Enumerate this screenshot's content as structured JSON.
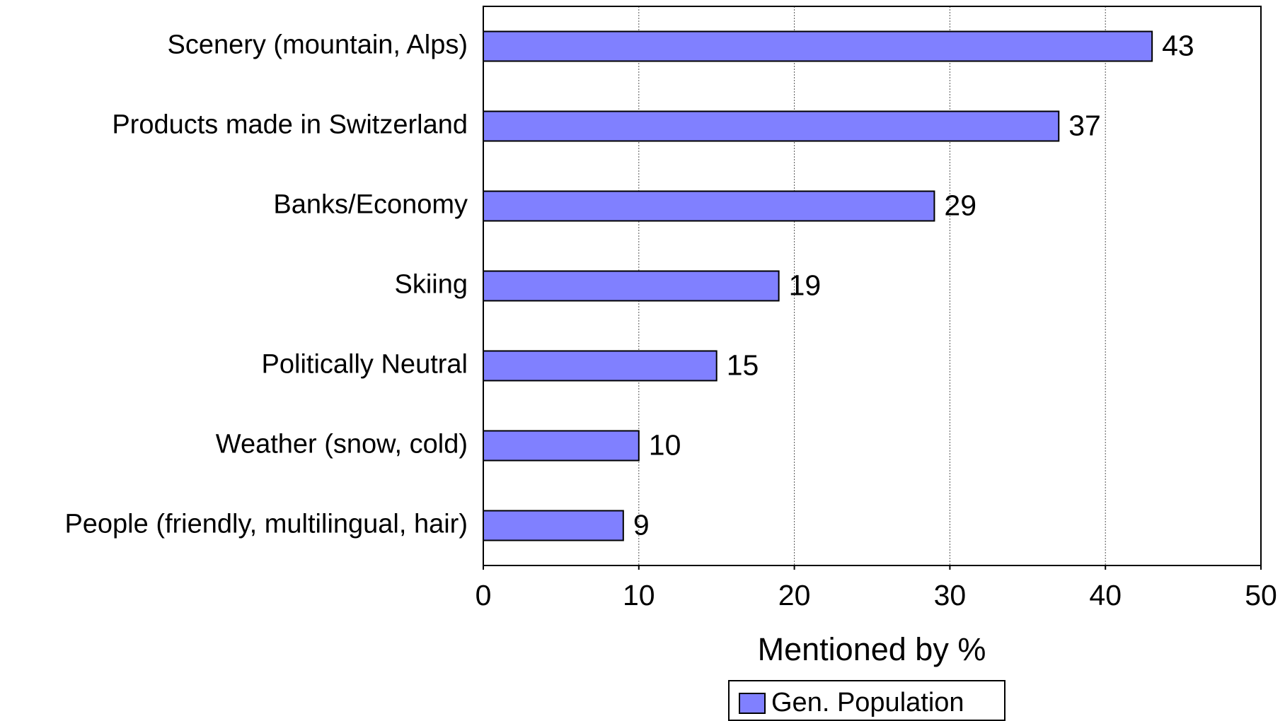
{
  "chart_data": {
    "type": "bar",
    "orientation": "horizontal",
    "categories": [
      "Scenery (mountain, Alps)",
      "Products made in Switzerland",
      "Banks/Economy",
      "Skiing",
      "Politically Neutral",
      "Weather (snow, cold)",
      "People (friendly, multilingual, hair)"
    ],
    "series": [
      {
        "name": "Gen. Population",
        "color": "#8080ff",
        "values": [
          43,
          37,
          29,
          19,
          15,
          10,
          9
        ]
      }
    ],
    "x_label": "Mentioned by %",
    "xlim": [
      0,
      50
    ],
    "xticks": [
      0,
      10,
      20,
      30,
      40,
      50
    ],
    "grid": true,
    "legend": "bottom"
  }
}
